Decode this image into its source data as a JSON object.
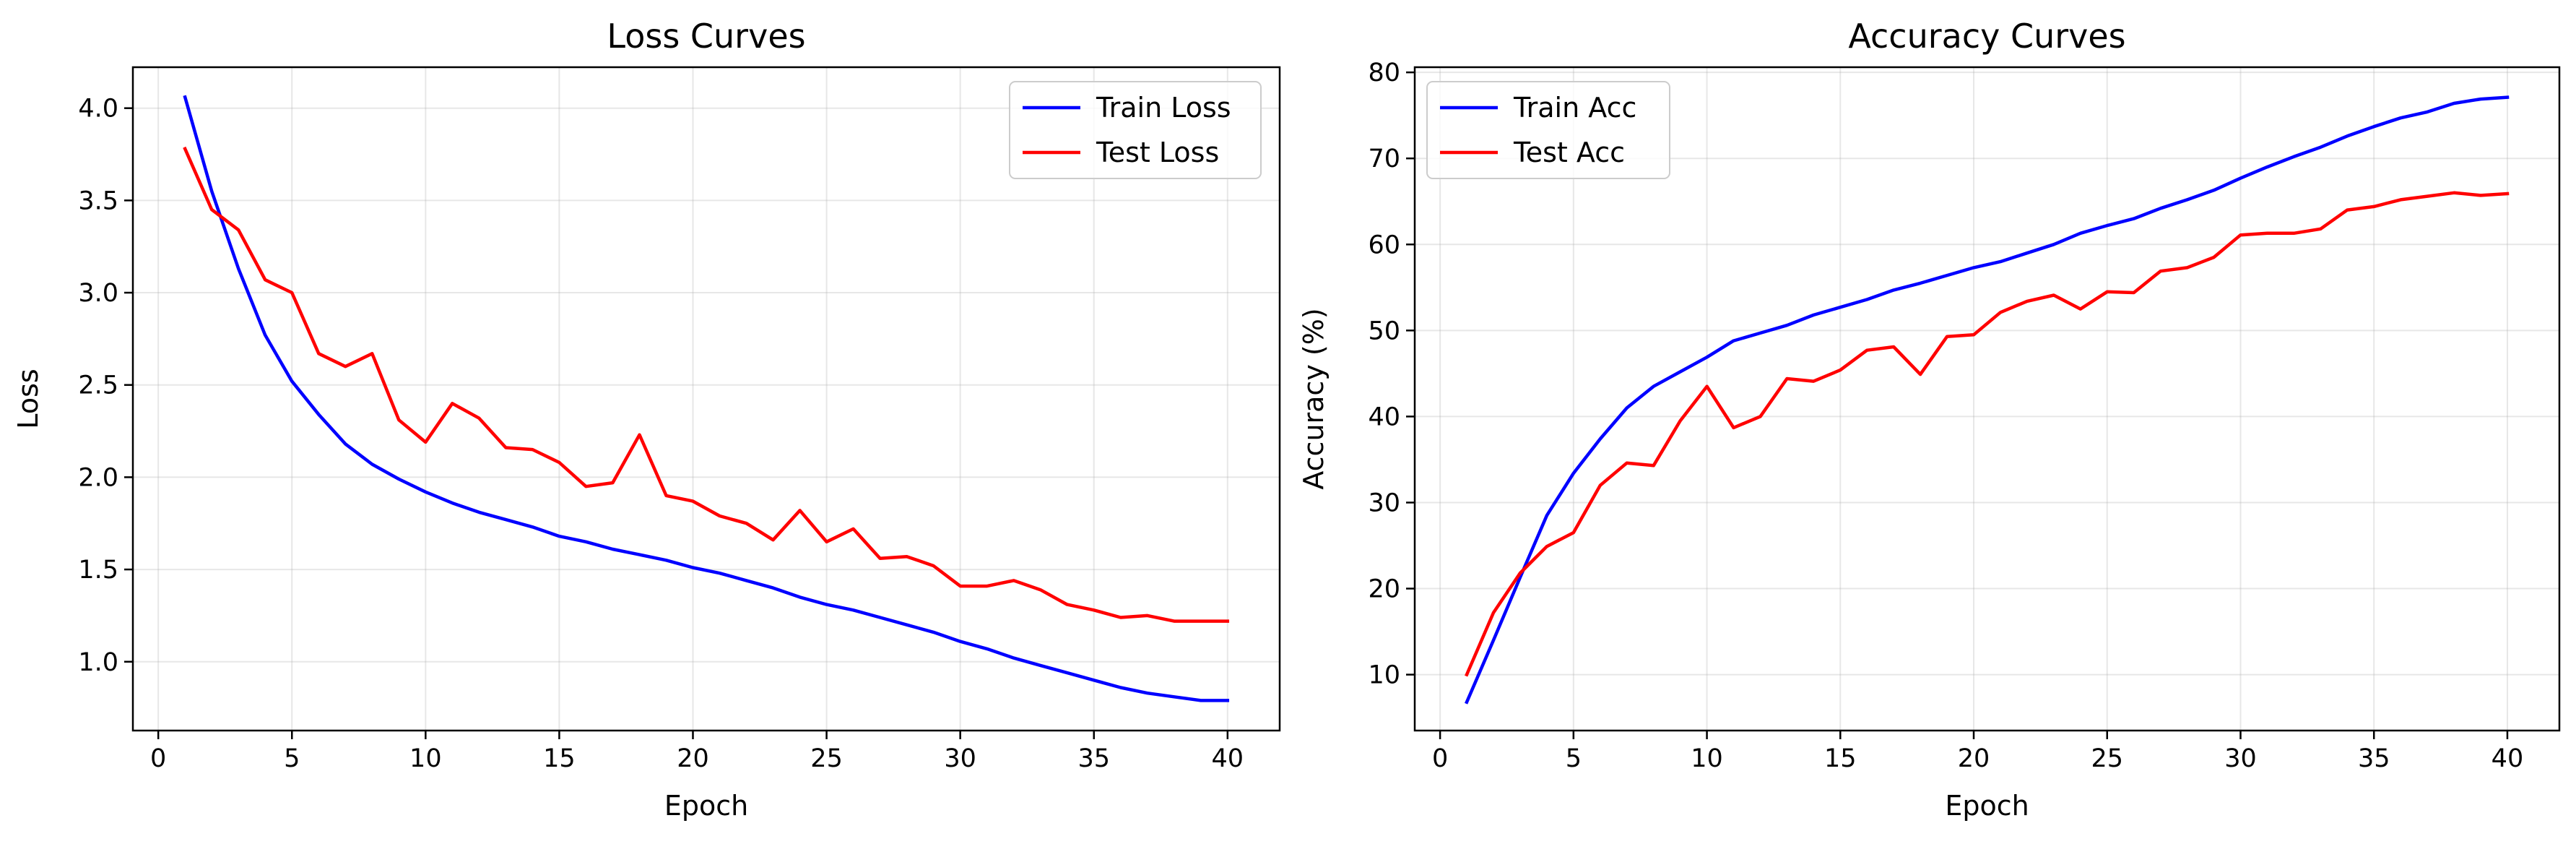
{
  "chart_data": [
    {
      "type": "line",
      "title": "Loss Curves",
      "xlabel": "Epoch",
      "ylabel": "Loss",
      "xlim": [
        -0.95,
        41.95
      ],
      "ylim": [
        0.627,
        4.222
      ],
      "xticks": [
        0,
        5,
        10,
        15,
        20,
        25,
        30,
        35,
        40
      ],
      "xtick_labels": [
        "0",
        "5",
        "10",
        "15",
        "20",
        "25",
        "30",
        "35",
        "40"
      ],
      "yticks": [
        1.0,
        1.5,
        2.0,
        2.5,
        3.0,
        3.5,
        4.0
      ],
      "ytick_labels": [
        "1.0",
        "1.5",
        "2.0",
        "2.5",
        "3.0",
        "3.5",
        "4.0"
      ],
      "grid": true,
      "legend_position": "upper right",
      "x": [
        1,
        2,
        3,
        4,
        5,
        6,
        7,
        8,
        9,
        10,
        11,
        12,
        13,
        14,
        15,
        16,
        17,
        18,
        19,
        20,
        21,
        22,
        23,
        24,
        25,
        26,
        27,
        28,
        29,
        30,
        31,
        32,
        33,
        34,
        35,
        36,
        37,
        38,
        39,
        40
      ],
      "series": [
        {
          "name": "Train Loss",
          "color": "#0000ff",
          "values": [
            4.06,
            3.55,
            3.13,
            2.77,
            2.52,
            2.34,
            2.18,
            2.07,
            1.99,
            1.92,
            1.86,
            1.81,
            1.77,
            1.73,
            1.68,
            1.65,
            1.61,
            1.58,
            1.55,
            1.51,
            1.48,
            1.44,
            1.4,
            1.35,
            1.31,
            1.28,
            1.24,
            1.2,
            1.16,
            1.11,
            1.07,
            1.02,
            0.98,
            0.94,
            0.9,
            0.86,
            0.83,
            0.81,
            0.79,
            0.79
          ]
        },
        {
          "name": "Test Loss",
          "color": "#ff0000",
          "values": [
            3.78,
            3.45,
            3.34,
            3.07,
            3.0,
            2.67,
            2.6,
            2.67,
            2.31,
            2.19,
            2.4,
            2.32,
            2.16,
            2.15,
            2.08,
            1.95,
            1.97,
            2.23,
            1.9,
            1.87,
            1.79,
            1.75,
            1.66,
            1.82,
            1.65,
            1.72,
            1.56,
            1.57,
            1.52,
            1.41,
            1.41,
            1.44,
            1.39,
            1.31,
            1.28,
            1.24,
            1.25,
            1.22,
            1.22,
            1.22
          ]
        }
      ]
    },
    {
      "type": "line",
      "title": "Accuracy Curves",
      "xlabel": "Epoch",
      "ylabel": "Accuracy (%)",
      "xlim": [
        -0.95,
        41.95
      ],
      "ylim": [
        3.5,
        80.6
      ],
      "xticks": [
        0,
        5,
        10,
        15,
        20,
        25,
        30,
        35,
        40
      ],
      "xtick_labels": [
        "0",
        "5",
        "10",
        "15",
        "20",
        "25",
        "30",
        "35",
        "40"
      ],
      "yticks": [
        10,
        20,
        30,
        40,
        50,
        60,
        70,
        80
      ],
      "ytick_labels": [
        "10",
        "20",
        "30",
        "40",
        "50",
        "60",
        "70",
        "80"
      ],
      "grid": true,
      "legend_position": "upper left",
      "x": [
        1,
        2,
        3,
        4,
        5,
        6,
        7,
        8,
        9,
        10,
        11,
        12,
        13,
        14,
        15,
        16,
        17,
        18,
        19,
        20,
        21,
        22,
        23,
        24,
        25,
        26,
        27,
        28,
        29,
        30,
        31,
        32,
        33,
        34,
        35,
        36,
        37,
        38,
        39,
        40
      ],
      "series": [
        {
          "name": "Train Acc",
          "color": "#0000ff",
          "values": [
            6.8,
            14.0,
            21.3,
            28.5,
            33.4,
            37.4,
            41.0,
            43.5,
            45.2,
            46.9,
            48.8,
            49.7,
            50.6,
            51.8,
            52.7,
            53.6,
            54.7,
            55.5,
            56.4,
            57.3,
            58.0,
            59.0,
            60.0,
            61.3,
            62.2,
            63.0,
            64.2,
            65.2,
            66.3,
            67.7,
            69.0,
            70.2,
            71.3,
            72.6,
            73.7,
            74.7,
            75.4,
            76.4,
            76.9,
            77.1
          ]
        },
        {
          "name": "Test Acc",
          "color": "#ff0000",
          "values": [
            10.0,
            17.2,
            21.8,
            24.9,
            26.5,
            32.0,
            34.6,
            34.3,
            39.5,
            43.5,
            38.7,
            40.0,
            44.4,
            44.1,
            45.4,
            47.7,
            48.1,
            44.9,
            49.3,
            49.5,
            52.1,
            53.4,
            54.1,
            52.5,
            54.5,
            54.4,
            56.9,
            57.3,
            58.5,
            61.1,
            61.3,
            61.3,
            61.8,
            64.0,
            64.4,
            65.2,
            65.6,
            66.0,
            65.7,
            65.9
          ]
        }
      ]
    }
  ]
}
